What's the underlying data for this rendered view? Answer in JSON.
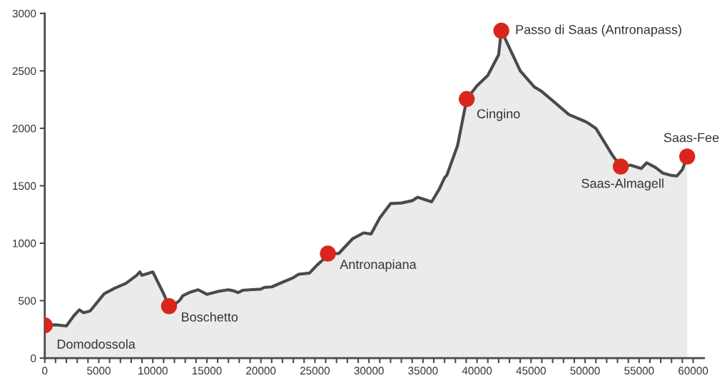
{
  "chart_data": {
    "type": "area",
    "xlim": [
      0,
      61000
    ],
    "ylim": [
      0,
      3000
    ],
    "xticks": [
      0,
      {
        "value": 1000,
        "label": null
      },
      {
        "value": 2000,
        "label": null
      },
      {
        "value": 3000,
        "label": null
      },
      {
        "value": 4000,
        "label": null
      },
      5000,
      {
        "value": 6000,
        "label": null
      },
      {
        "value": 7000,
        "label": null
      },
      {
        "value": 8000,
        "label": null
      },
      {
        "value": 9000,
        "label": null
      },
      10000,
      {
        "value": 11000,
        "label": null
      },
      {
        "value": 12000,
        "label": null
      },
      {
        "value": 13000,
        "label": null
      },
      {
        "value": 14000,
        "label": null
      },
      15000,
      {
        "value": 16000,
        "label": null
      },
      {
        "value": 17000,
        "label": null
      },
      {
        "value": 18000,
        "label": null
      },
      {
        "value": 19000,
        "label": null
      },
      20000,
      {
        "value": 21000,
        "label": null
      },
      {
        "value": 22000,
        "label": null
      },
      {
        "value": 23000,
        "label": null
      },
      {
        "value": 24000,
        "label": null
      },
      25000,
      {
        "value": 26000,
        "label": null
      },
      {
        "value": 27000,
        "label": null
      },
      {
        "value": 28000,
        "label": null
      },
      {
        "value": 29000,
        "label": null
      },
      30000,
      {
        "value": 31000,
        "label": null
      },
      {
        "value": 32000,
        "label": null
      },
      {
        "value": 33000,
        "label": null
      },
      {
        "value": 34000,
        "label": null
      },
      35000,
      {
        "value": 36000,
        "label": null
      },
      {
        "value": 37000,
        "label": null
      },
      {
        "value": 38000,
        "label": null
      },
      {
        "value": 39000,
        "label": null
      },
      40000,
      {
        "value": 41000,
        "label": null
      },
      {
        "value": 42000,
        "label": null
      },
      {
        "value": 43000,
        "label": null
      },
      {
        "value": 44000,
        "label": null
      },
      45000,
      {
        "value": 46000,
        "label": null
      },
      {
        "value": 47000,
        "label": null
      },
      {
        "value": 48000,
        "label": null
      },
      {
        "value": 49000,
        "label": null
      },
      50000,
      {
        "value": 51000,
        "label": null
      },
      {
        "value": 52000,
        "label": null
      },
      {
        "value": 53000,
        "label": null
      },
      {
        "value": 54000,
        "label": null
      },
      55000,
      {
        "value": 56000,
        "label": null
      },
      {
        "value": 57000,
        "label": null
      },
      {
        "value": 58000,
        "label": null
      },
      {
        "value": 59000,
        "label": null
      },
      60000
    ],
    "yticks": [
      0,
      500,
      1000,
      1500,
      2000,
      2500,
      3000
    ],
    "grid": false,
    "legend": false,
    "series": [
      {
        "color": "#4a4a4a",
        "line_style": "solid",
        "marker": "none",
        "x": [
          0,
          1000,
          2000,
          2700,
          3200,
          3600,
          4200,
          5500,
          6500,
          7500,
          8500,
          8800,
          9000,
          10000,
          11000,
          11500,
          12200,
          12500,
          12800,
          13500,
          14200,
          15000,
          16000,
          17000,
          17500,
          17900,
          18300,
          19000,
          20000,
          20300,
          21000,
          22000,
          23000,
          23500,
          24500,
          25200,
          25800,
          26200,
          27200,
          28500,
          29500,
          30200,
          31000,
          32000,
          33000,
          34000,
          34500,
          35800,
          36500,
          37000,
          37200,
          38200,
          39050,
          40000,
          41000,
          42000,
          42250,
          44000,
          45300,
          46000,
          47500,
          48500,
          50000,
          50200,
          51000,
          52500,
          53300,
          54200,
          55200,
          55700,
          56500,
          57200,
          58000,
          58500,
          59000,
          59450
        ],
        "values": [
          285,
          290,
          280,
          370,
          420,
          395,
          410,
          560,
          610,
          650,
          720,
          750,
          720,
          750,
          560,
          452,
          480,
          505,
          545,
          575,
          595,
          555,
          580,
          595,
          585,
          570,
          590,
          595,
          600,
          615,
          620,
          660,
          700,
          730,
          740,
          810,
          860,
          910,
          910,
          1040,
          1090,
          1080,
          1220,
          1345,
          1350,
          1370,
          1400,
          1360,
          1470,
          1570,
          1590,
          1850,
          2255,
          2370,
          2460,
          2640,
          2850,
          2500,
          2360,
          2320,
          2200,
          2120,
          2060,
          2050,
          2000,
          1770,
          1667,
          1680,
          1650,
          1700,
          1660,
          1610,
          1590,
          1585,
          1640,
          1754
        ]
      },
      {
        "type": "scatter",
        "color": "#d9261c",
        "marker": "circle",
        "x": [
          0,
          11500,
          26200,
          39050,
          42250,
          53300,
          59450
        ],
        "values": [
          285,
          452,
          910,
          2255,
          2850,
          1667,
          1754
        ]
      }
    ],
    "annotations": [
      {
        "text": "Domodossola",
        "x": 0,
        "y": 285
      },
      {
        "text": "Boschetto",
        "x": 11500,
        "y": 452
      },
      {
        "text": "Antronapiana",
        "x": 26200,
        "y": 910
      },
      {
        "text": "Cingino",
        "x": 39050,
        "y": 2255
      },
      {
        "text": "Passo di Saas (Antronapass)",
        "x": 42250,
        "y": 2850
      },
      {
        "text": "Saas-Almagell",
        "x": 53300,
        "y": 1667
      },
      {
        "text": "Saas-Fee",
        "x": 59450,
        "y": 1754
      }
    ]
  }
}
